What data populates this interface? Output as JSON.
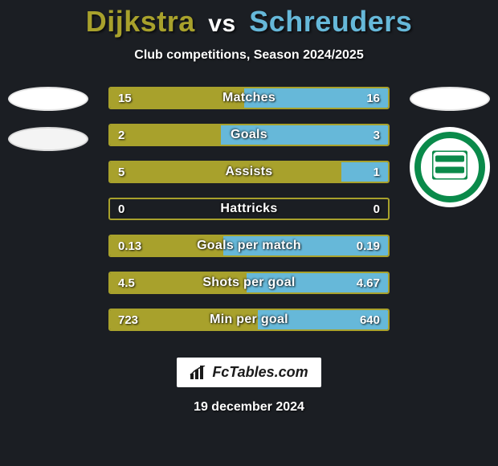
{
  "background_color": "#1b1e23",
  "title": {
    "player1": "Dijkstra",
    "vs": "vs",
    "player2": "Schreuders",
    "player1_color": "#a8a12c",
    "player2_color": "#66b8d9",
    "vs_color": "#ffffff"
  },
  "subtitle": "Club competitions, Season 2024/2025",
  "player1_accent": "#a8a12c",
  "player2_accent": "#66b8d9",
  "row_border_color": "#a8a12c",
  "row_track_color": "rgba(0,0,0,0.0)",
  "rows": [
    {
      "label": "Matches",
      "left": "15",
      "right": "16",
      "lv": 15,
      "rv": 16
    },
    {
      "label": "Goals",
      "left": "2",
      "right": "3",
      "lv": 2,
      "rv": 3
    },
    {
      "label": "Assists",
      "left": "5",
      "right": "1",
      "lv": 5,
      "rv": 1
    },
    {
      "label": "Hattricks",
      "left": "0",
      "right": "0",
      "lv": 0,
      "rv": 0
    },
    {
      "label": "Goals per match",
      "left": "0.13",
      "right": "0.19",
      "lv": 0.13,
      "rv": 0.19
    },
    {
      "label": "Shots per goal",
      "left": "4.5",
      "right": "4.67",
      "lv": 4.5,
      "rv": 4.67
    },
    {
      "label": "Min per goal",
      "left": "723",
      "right": "640",
      "lv": 723,
      "rv": 640
    }
  ],
  "watermark": "FcTables.com",
  "date": "19 december 2024",
  "groningen": {
    "ring_color": "#0a8a4a",
    "bar_color": "#0a8a4a",
    "bg": "#ffffff"
  }
}
